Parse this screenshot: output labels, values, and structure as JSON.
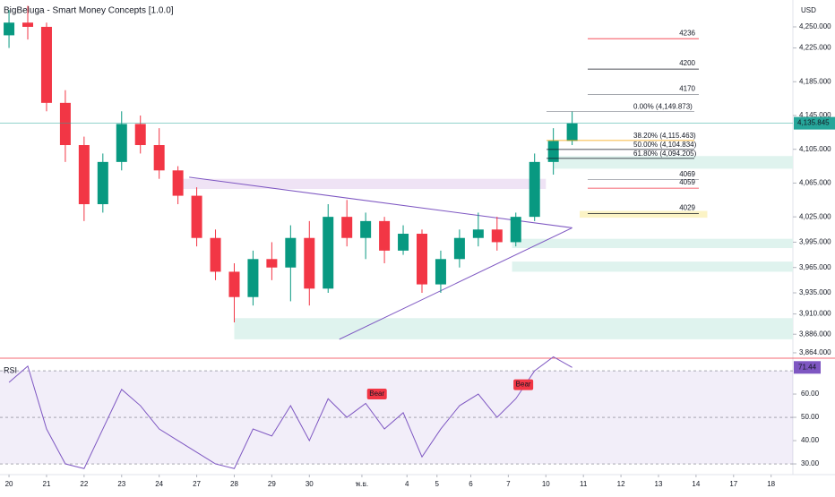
{
  "chart_data": [
    {
      "type": "candlestick",
      "title": "BigBeluga - Smart Money Concepts [1.0.0]",
      "currency": "USD",
      "up_color": "#089981",
      "down_color": "#f23645",
      "x": [
        0,
        0.5,
        1,
        1.5,
        2,
        2.5,
        3,
        3.5,
        4,
        4.5,
        5,
        5.5,
        6,
        6.5,
        7,
        7.5,
        8,
        8.5,
        9,
        9.5,
        10,
        10.5,
        11,
        11.5,
        12,
        12.5,
        13,
        13.5,
        14,
        14.5,
        15
      ],
      "open": [
        4240,
        4255,
        4250,
        4160,
        4110,
        4040,
        4090,
        4135,
        4110,
        4080,
        4050,
        4000,
        3960,
        3930,
        3975,
        3965,
        4000,
        3940,
        4025,
        4000,
        4020,
        3985,
        4005,
        3945,
        3975,
        4000,
        4010,
        3995,
        4025,
        4090,
        4115
      ],
      "high": [
        4270,
        4275,
        4255,
        4175,
        4120,
        4100,
        4150,
        4145,
        4130,
        4085,
        4060,
        4010,
        3970,
        3985,
        3995,
        4015,
        4020,
        4040,
        4045,
        4030,
        4025,
        4015,
        4010,
        3985,
        4010,
        4030,
        4025,
        4030,
        4100,
        4130,
        4150
      ],
      "low": [
        4225,
        4235,
        4150,
        4090,
        4020,
        4030,
        4080,
        4100,
        4070,
        4040,
        3990,
        3950,
        3900,
        3920,
        3950,
        3925,
        3920,
        3935,
        3990,
        3975,
        3970,
        3980,
        3935,
        3935,
        3965,
        3990,
        3985,
        3990,
        4020,
        4075,
        4110
      ],
      "close": [
        4255,
        4250,
        4160,
        4110,
        4040,
        4090,
        4135,
        4110,
        4080,
        4050,
        4000,
        3960,
        3930,
        3975,
        3965,
        4000,
        3940,
        4025,
        4000,
        4020,
        3985,
        4005,
        3945,
        3975,
        4000,
        4010,
        3995,
        4025,
        4090,
        4115,
        4135.845
      ],
      "xlim": [
        -0.24,
        20.88
      ],
      "ylim": [
        3857.6,
        4281.8
      ],
      "xticks": [
        {
          "value": 0,
          "label": "20"
        },
        {
          "value": 1,
          "label": "21"
        },
        {
          "value": 2,
          "label": "22"
        },
        {
          "value": 3,
          "label": "23"
        },
        {
          "value": 4,
          "label": "24"
        },
        {
          "value": 5,
          "label": "27"
        },
        {
          "value": 6,
          "label": "28"
        },
        {
          "value": 7,
          "label": "29"
        },
        {
          "value": 8,
          "label": "30"
        },
        {
          "value": 9.4,
          "label": "พ.ย."
        },
        {
          "value": 10.6,
          "label": "4"
        },
        {
          "value": 11.4,
          "label": "5"
        },
        {
          "value": 12.3,
          "label": "6"
        },
        {
          "value": 13.3,
          "label": "7"
        },
        {
          "value": 14.3,
          "label": "10"
        },
        {
          "value": 15.3,
          "label": "11"
        },
        {
          "value": 16.3,
          "label": "12"
        },
        {
          "value": 17.3,
          "label": "13"
        },
        {
          "value": 18.3,
          "label": "14"
        },
        {
          "value": 19.3,
          "label": "17"
        },
        {
          "value": 20.3,
          "label": "18"
        }
      ],
      "yticks": [
        {
          "value": 4250,
          "label": "4,250.000"
        },
        {
          "value": 4225,
          "label": "4,225.000"
        },
        {
          "value": 4185,
          "label": "4,185.000"
        },
        {
          "value": 4145,
          "label": "4,145.000"
        },
        {
          "value": 4105,
          "label": "4,105.000"
        },
        {
          "value": 4065,
          "label": "4,065.000"
        },
        {
          "value": 4025,
          "label": "4,025.000"
        },
        {
          "value": 3995,
          "label": "3,995.000"
        },
        {
          "value": 3965,
          "label": "3,965.000"
        },
        {
          "value": 3935,
          "label": "3,935.000"
        },
        {
          "value": 3910,
          "label": "3,910.000"
        },
        {
          "value": 3886,
          "label": "3,886.000"
        },
        {
          "value": 3864,
          "label": "3,864.000"
        }
      ],
      "last_price": {
        "value": 4135.845,
        "label": "4,135.845",
        "color": "#26a69a"
      },
      "fib_levels": [
        {
          "value": 4149.873,
          "label": "0.00% (4,149.873)",
          "color": "#9598a1"
        },
        {
          "value": 4115.463,
          "label": "38.20% (4,115.463)",
          "color": "#f59f00"
        },
        {
          "value": 4104.834,
          "label": "50.00% (4,104.834)",
          "color": "#131722"
        },
        {
          "value": 4094.205,
          "label": "61.80% (4,094.205)",
          "color": "#131722"
        }
      ],
      "levels": [
        {
          "value": 4236,
          "color": "#f23645"
        },
        {
          "value": 4200,
          "color": "#131722"
        },
        {
          "value": 4170,
          "color": "#9598a1"
        },
        {
          "value": 4069,
          "color": "#9598a1"
        },
        {
          "value": 4059,
          "color": "#f23645"
        },
        {
          "value": 4029,
          "color": "#131722"
        }
      ],
      "zones": [
        {
          "x": [
            14.5,
            20.88
          ],
          "range": [
            4082,
            4097
          ],
          "color": "#dff3ee"
        },
        {
          "x": [
            4.6,
            14.3
          ],
          "range": [
            4058,
            4070
          ],
          "color": "#efe3f5"
        },
        {
          "x": [
            15.2,
            18.6
          ],
          "range": [
            4024,
            4032
          ],
          "color": "#fbf3c5"
        },
        {
          "x": [
            13.4,
            20.88
          ],
          "range": [
            3988,
            3999
          ],
          "color": "#dff3ee"
        },
        {
          "x": [
            13.4,
            20.88
          ],
          "range": [
            3960,
            3972
          ],
          "color": "#dff3ee"
        },
        {
          "x": [
            6,
            20.88
          ],
          "range": [
            3880,
            3905
          ],
          "color": "#dff3ee"
        }
      ],
      "trendlines": [
        {
          "x": [
            4.8,
            15
          ],
          "y": [
            4072,
            4012
          ],
          "color": "#7e57c2"
        },
        {
          "x": [
            8.8,
            15
          ],
          "y": [
            3880,
            4012
          ],
          "color": "#7e57c2"
        }
      ]
    },
    {
      "type": "line",
      "title": "RSI",
      "x": [
        0,
        0.5,
        1,
        1.5,
        2,
        2.5,
        3,
        3.5,
        4,
        4.5,
        5,
        5.5,
        6,
        6.5,
        7,
        7.5,
        8,
        8.5,
        9,
        9.5,
        10,
        10.5,
        11,
        11.5,
        12,
        12.5,
        13,
        13.5,
        14,
        14.5,
        15
      ],
      "values": [
        65,
        72,
        45,
        30,
        28,
        45,
        62,
        55,
        45,
        40,
        35,
        30,
        28,
        45,
        42,
        55,
        40,
        58,
        50,
        56,
        45,
        52,
        33,
        45,
        55,
        60,
        50,
        58,
        70,
        76,
        71.44
      ],
      "color": "#7e57c2",
      "last_value": {
        "value": 71.44,
        "label": "71.44"
      },
      "ylim": [
        25.4,
        75.4
      ],
      "yticks": [
        {
          "value": 60,
          "label": "60.00"
        },
        {
          "value": 50,
          "label": "50.00"
        },
        {
          "value": 40,
          "label": "40.00"
        },
        {
          "value": 30,
          "label": "30.00"
        }
      ],
      "bands": [
        70,
        50,
        30
      ],
      "annotations": [
        {
          "x": 9.8,
          "y": 60,
          "text": "Bear"
        },
        {
          "x": 13.7,
          "y": 64,
          "text": "Bear"
        }
      ]
    }
  ]
}
